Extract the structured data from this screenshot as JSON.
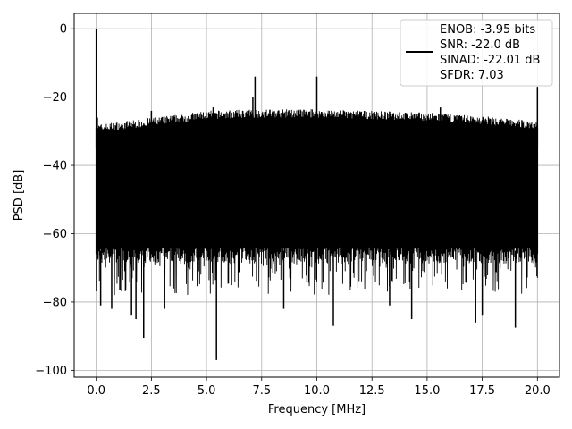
{
  "chart_data": {
    "type": "line",
    "title": "",
    "xlabel": "Frequency [MHz]",
    "ylabel": "PSD [dB]",
    "xlim": [
      -1.0,
      21.0
    ],
    "ylim": [
      -102,
      4.5
    ],
    "xticks": [
      0.0,
      2.5,
      5.0,
      7.5,
      10.0,
      12.5,
      15.0,
      17.5,
      20.0
    ],
    "xtick_labels": [
      "0.0",
      "2.5",
      "5.0",
      "7.5",
      "10.0",
      "12.5",
      "15.0",
      "17.5",
      "20.0"
    ],
    "yticks": [
      0,
      -20,
      -40,
      -60,
      -80,
      -100
    ],
    "ytick_labels": [
      "0",
      "−20",
      "−40",
      "−60",
      "−80",
      "−100"
    ],
    "grid": true,
    "legend_position": "top-right",
    "series": [
      {
        "color": "#000000",
        "noise_floor": {
          "x_range": [
            0.0,
            20.0
          ],
          "upper_envelope": [
            [
              0.0,
              -29
            ],
            [
              2.5,
              -27
            ],
            [
              5.0,
              -25
            ],
            [
              7.5,
              -24.5
            ],
            [
              10.0,
              -24.5
            ],
            [
              12.5,
              -25
            ],
            [
              15.0,
              -25.5
            ],
            [
              17.5,
              -26.5
            ],
            [
              20.0,
              -28
            ]
          ],
          "lower_envelope": [
            [
              0.0,
              -64
            ],
            [
              20.0,
              -64
            ]
          ],
          "typical_dip_min": -78
        },
        "spikes": [
          {
            "x": 0.0,
            "y": 0.0
          },
          {
            "x": 0.05,
            "y": -26
          },
          {
            "x": 2.5,
            "y": -24
          },
          {
            "x": 5.3,
            "y": -23
          },
          {
            "x": 7.1,
            "y": -20
          },
          {
            "x": 7.2,
            "y": -14
          },
          {
            "x": 10.0,
            "y": -14
          },
          {
            "x": 15.6,
            "y": -23
          },
          {
            "x": 20.0,
            "y": -17
          }
        ],
        "dips": [
          {
            "x": 0.2,
            "y": -81
          },
          {
            "x": 0.7,
            "y": -82
          },
          {
            "x": 1.6,
            "y": -84
          },
          {
            "x": 1.8,
            "y": -85
          },
          {
            "x": 2.15,
            "y": -90.5
          },
          {
            "x": 3.1,
            "y": -82
          },
          {
            "x": 5.45,
            "y": -97
          },
          {
            "x": 8.5,
            "y": -82
          },
          {
            "x": 10.75,
            "y": -87
          },
          {
            "x": 13.3,
            "y": -81
          },
          {
            "x": 14.3,
            "y": -85
          },
          {
            "x": 17.2,
            "y": -86
          },
          {
            "x": 17.5,
            "y": -84
          },
          {
            "x": 19.0,
            "y": -87.5
          }
        ]
      }
    ],
    "legend": {
      "entries": [
        "ENOB: -3.95 bits",
        "SNR: -22.0 dB",
        "SINAD: -22.01 dB",
        "SFDR: 7.03"
      ]
    }
  }
}
